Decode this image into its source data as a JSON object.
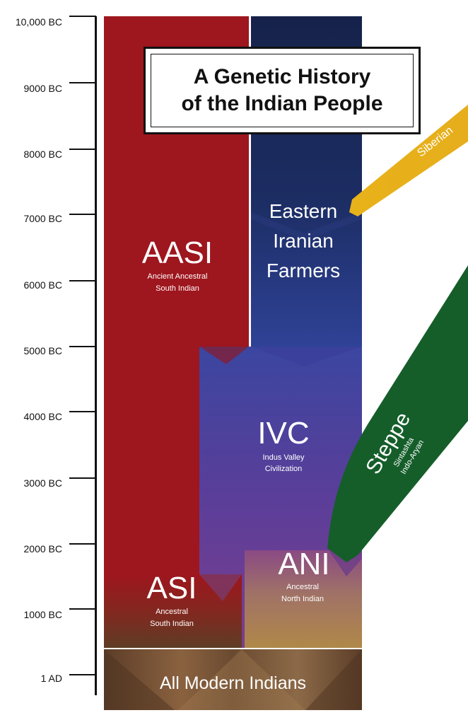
{
  "title": {
    "line1": "A Genetic History",
    "line2": "of the Indian People"
  },
  "timeline": {
    "ticks": [
      "10,000 BC",
      "9000 BC",
      "8000 BC",
      "7000 BC",
      "6000 BC",
      "5000 BC",
      "4000 BC",
      "3000 BC",
      "2000 BC",
      "1000 BC",
      "1 AD"
    ]
  },
  "groups": {
    "aasi": {
      "name": "AASI",
      "desc1": "Ancient Ancestral",
      "desc2": "South Indian"
    },
    "eif": {
      "line1": "Eastern",
      "line2": "Iranian",
      "line3": "Farmers"
    },
    "siberian": {
      "name": "Siberian"
    },
    "ivc": {
      "name": "IVC",
      "desc1": "Indus Valley",
      "desc2": "Civilization"
    },
    "steppe": {
      "name": "Steppe",
      "desc1": "Sintashta",
      "desc2": "Indo-Aryan"
    },
    "asi": {
      "name": "ASI",
      "desc1": "Ancestral",
      "desc2": "South Indian"
    },
    "ani": {
      "name": "ANI",
      "desc1": "Ancestral",
      "desc2": "North Indian"
    },
    "modern": {
      "name": "All Modern Indians"
    }
  },
  "colors": {
    "aasi": "#9e161e",
    "eif_top": "#17244d",
    "eif_bottom": "#2e3f92",
    "ivc": "#5b3c98",
    "siberian": "#e3b120",
    "steppe": "#155e2a",
    "asi": "#6e3322",
    "ani": "#a27c52",
    "modern": "#6c4a30"
  }
}
